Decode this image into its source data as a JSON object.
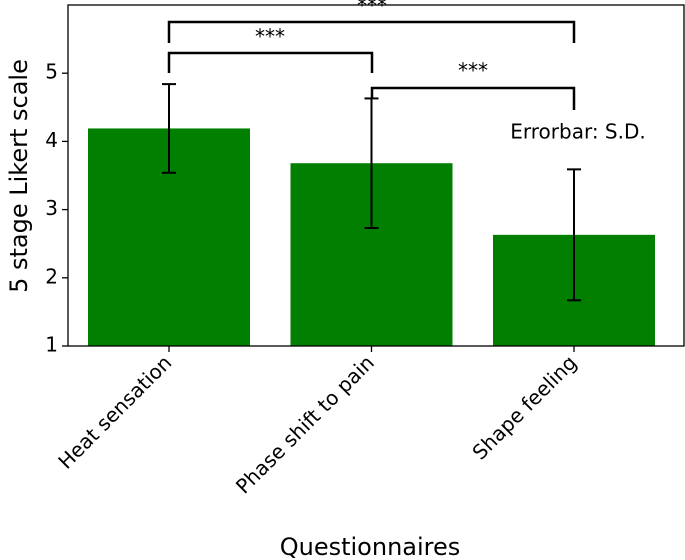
{
  "chart_data": {
    "type": "bar",
    "x_label": "Questionnaires",
    "y_label": "5 stage Likert scale",
    "categories": [
      "Heat sensation",
      "Phase shift to pain",
      "Shape feeling"
    ],
    "values": [
      4.19,
      3.68,
      2.63
    ],
    "errors": [
      0.65,
      0.95,
      0.96
    ],
    "color": "#007f00",
    "ylim": [
      1,
      6
    ],
    "yticks": [
      1,
      2,
      3,
      4,
      5
    ],
    "annotations": [
      "***",
      "***",
      "***",
      "Errorbar: S.D."
    ]
  }
}
